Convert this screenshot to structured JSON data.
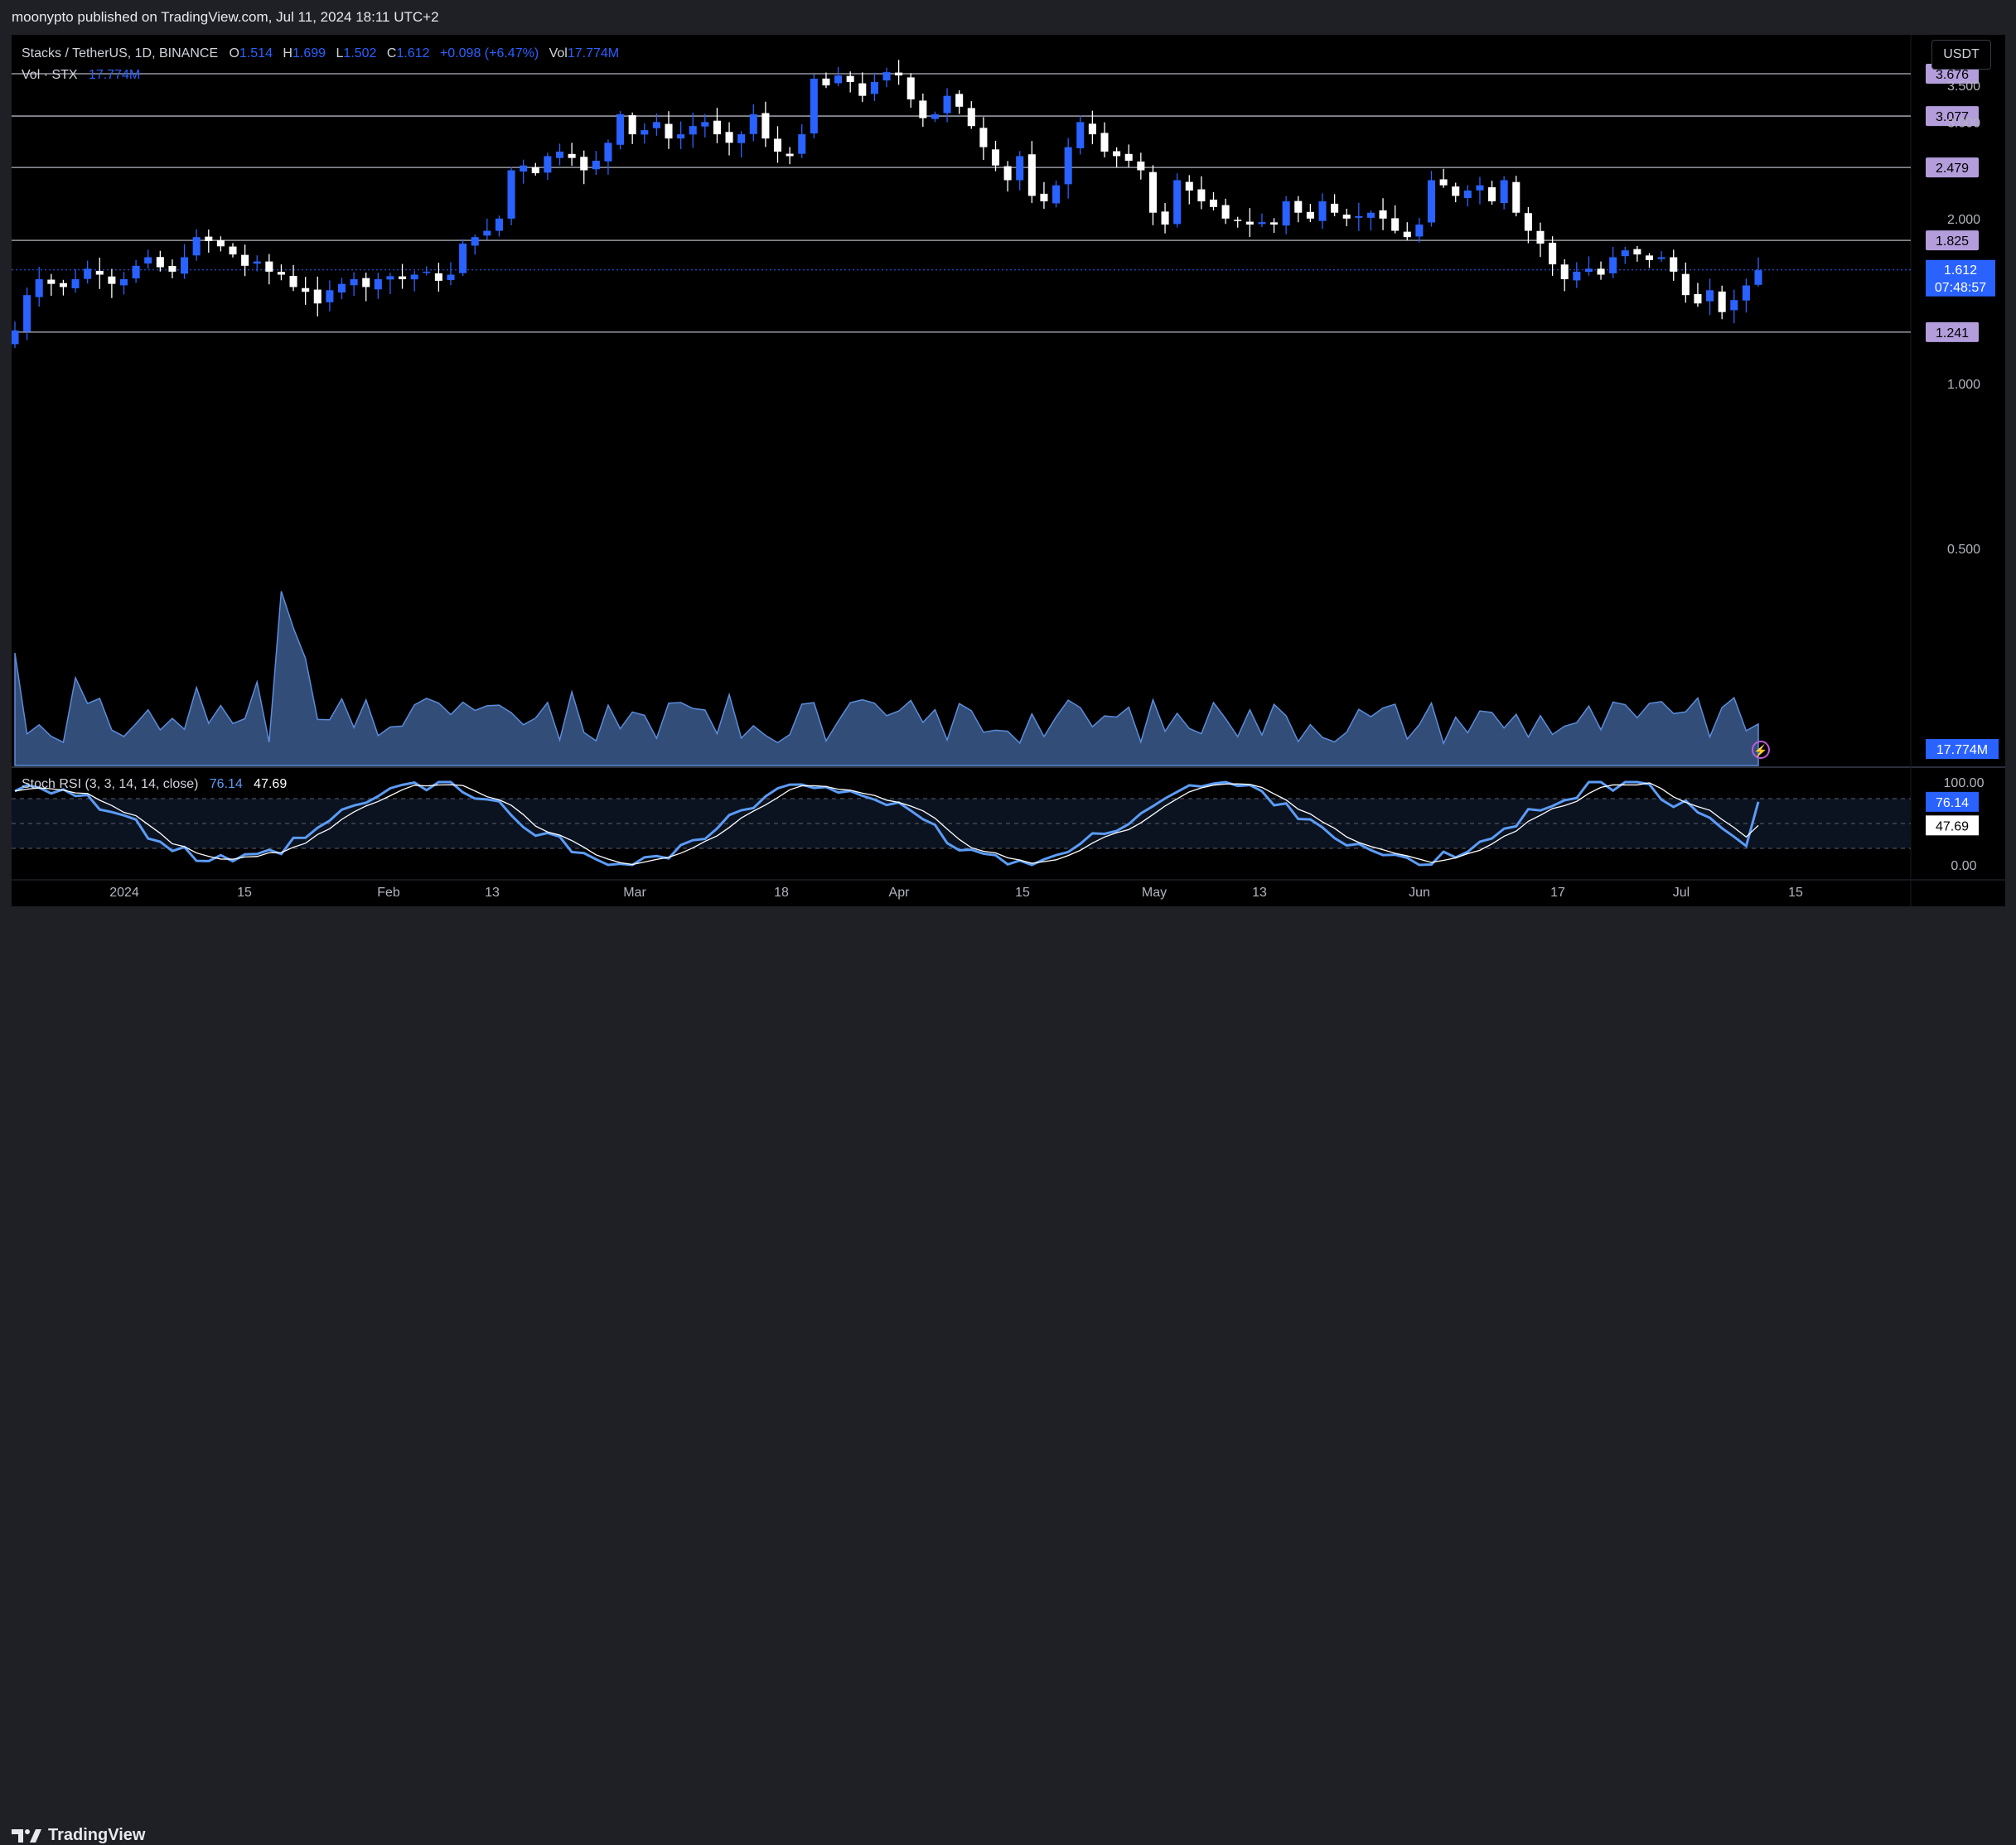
{
  "header": {
    "published": "moonypto published on TradingView.com, Jul 11, 2024 18:11 UTC+2"
  },
  "footer": {
    "brand": "TradingView"
  },
  "legend": {
    "symbol": "Stacks / TetherUS, 1D, BINANCE",
    "o_label": "O",
    "o": "1.514",
    "h_label": "H",
    "h": "1.699",
    "l_label": "L",
    "l": "1.502",
    "c_label": "C",
    "c": "1.612",
    "change": "+0.098 (+6.47%)",
    "vol_label": "Vol",
    "vol": "17.774M",
    "vol_series": "Vol · STX",
    "vol_series_value": "17.774M"
  },
  "currency_button": "USDT",
  "rsi_legend": {
    "label": "Stoch RSI (3, 3, 14, 14, close)",
    "k": "76.14",
    "d": "47.69"
  },
  "price_axis": {
    "ticks": [
      "3.500",
      "3.000",
      "2.000",
      "1.000",
      "0.500"
    ],
    "levels": [
      "3.676",
      "3.077",
      "2.479",
      "1.825",
      "1.241"
    ],
    "current_price": "1.612",
    "countdown": "07:48:57",
    "volume_badge": "17.774M"
  },
  "rsi_axis": {
    "ticks": [
      "100.00",
      "0.00"
    ],
    "k_badge": "76.14",
    "d_badge": "47.69"
  },
  "time_axis": [
    "2024",
    "15",
    "Feb",
    "13",
    "Mar",
    "18",
    "Apr",
    "15",
    "May",
    "13",
    "Jun",
    "17",
    "Jul",
    "15"
  ],
  "colors": {
    "up": "#2962ff",
    "down": "#ffffff",
    "background": "#000000",
    "level_line": "#b2b5be",
    "volume": "#5b8ddb",
    "k_line": "#5b9cf6",
    "d_line": "#ffffff",
    "level_badge": "#b39ddb"
  },
  "chart_data": {
    "type": "candlestick",
    "title": "Stacks / TetherUS, 1D, BINANCE",
    "y_scale": "log",
    "ylim": [
      0.5,
      3.9
    ],
    "horizontal_levels": [
      3.676,
      3.077,
      2.479,
      1.825,
      1.241
    ],
    "last": {
      "open": 1.514,
      "high": 1.699,
      "low": 1.502,
      "close": 1.612,
      "volume": "17.774M"
    },
    "x_ticks": [
      "2024",
      "15",
      "Feb",
      "13",
      "Mar",
      "18",
      "Apr",
      "15",
      "May",
      "13",
      "Jun",
      "17",
      "Jul",
      "15"
    ],
    "closes": [
      1.25,
      1.45,
      1.55,
      1.52,
      1.5,
      1.55,
      1.62,
      1.58,
      1.52,
      1.55,
      1.64,
      1.7,
      1.63,
      1.6,
      1.7,
      1.85,
      1.82,
      1.78,
      1.72,
      1.64,
      1.67,
      1.6,
      1.58,
      1.5,
      1.47,
      1.4,
      1.48,
      1.52,
      1.55,
      1.5,
      1.55,
      1.57,
      1.55,
      1.58,
      1.6,
      1.54,
      1.58,
      1.8,
      1.85,
      1.9,
      2.0,
      2.45,
      2.5,
      2.42,
      2.6,
      2.65,
      2.58,
      2.45,
      2.55,
      2.75,
      3.1,
      2.85,
      2.9,
      3.0,
      2.8,
      2.85,
      2.95,
      3.0,
      2.85,
      2.75,
      2.85,
      3.1,
      2.8,
      2.65,
      2.6,
      2.85,
      3.6,
      3.5,
      3.65,
      3.55,
      3.35,
      3.55,
      3.7,
      3.65,
      3.3,
      3.05,
      3.1,
      3.35,
      3.2,
      2.95,
      2.7,
      2.5,
      2.35,
      2.6,
      2.2,
      2.15,
      2.3,
      2.7,
      3.0,
      2.85,
      2.65,
      2.6,
      2.55,
      2.45,
      2.05,
      1.95,
      2.35,
      2.25,
      2.15,
      2.1,
      2.0,
      1.98,
      1.95,
      1.97,
      1.95,
      2.15,
      2.05,
      2.0,
      2.15,
      2.05,
      2.0,
      2.02,
      2.05,
      2.0,
      1.9,
      1.85,
      1.95,
      2.35,
      2.3,
      2.2,
      2.25,
      2.3,
      2.15,
      2.35,
      2.05,
      1.9,
      1.8,
      1.65,
      1.55,
      1.6,
      1.62,
      1.58,
      1.7,
      1.75,
      1.72,
      1.68,
      1.7,
      1.6,
      1.45,
      1.4,
      1.48,
      1.35,
      1.42,
      1.51,
      1.61
    ]
  }
}
